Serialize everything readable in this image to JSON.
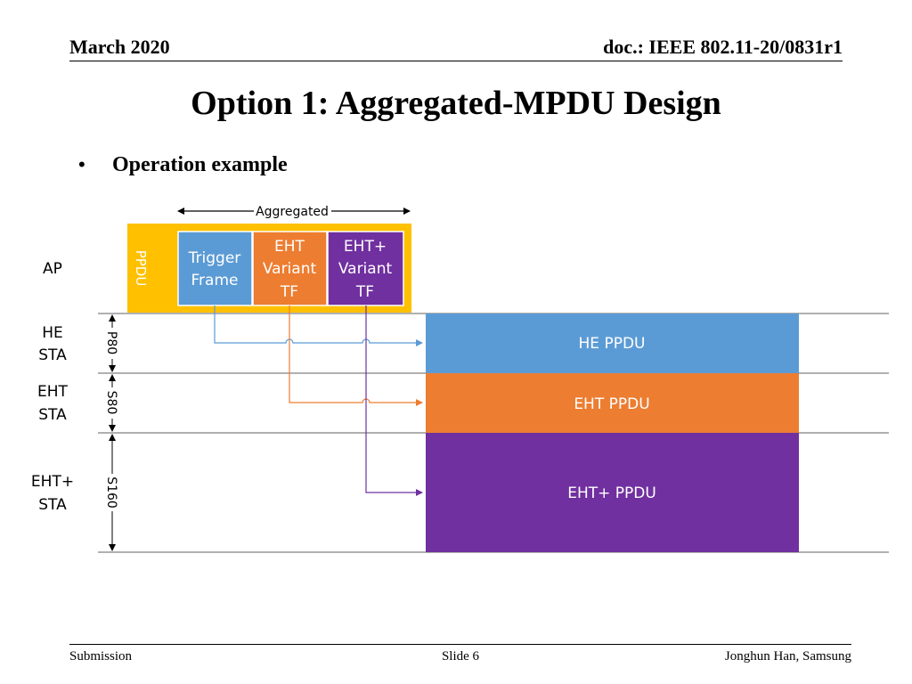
{
  "header": {
    "date": "March 2020",
    "doc": "doc.: IEEE 802.11-20/0831r1"
  },
  "title": "Option 1: Aggregated-MPDU Design",
  "bullet": "Operation example",
  "diagram": {
    "aggregated_label": "Aggregated",
    "ppdu_label": "PPDU",
    "row_labels": {
      "ap": "AP",
      "he_sta": [
        "HE",
        "STA"
      ],
      "eht_sta": [
        "EHT",
        "STA"
      ],
      "ehtplus_sta": [
        "EHT+",
        "STA"
      ]
    },
    "bandwidth_labels": {
      "p80": "P80",
      "s80": "S80",
      "s160": "S160"
    },
    "frames": {
      "trigger": [
        "Trigger",
        "Frame"
      ],
      "eht_variant": [
        "EHT",
        "Variant",
        "TF"
      ],
      "ehtplus_variant": [
        "EHT+",
        "Variant",
        "TF"
      ]
    },
    "responses": {
      "he": "HE PPDU",
      "eht": "EHT PPDU",
      "ehtplus": "EHT+ PPDU"
    },
    "colors": {
      "ppdu_bg": "#FFC000",
      "trigger": "#5B9BD5",
      "eht": "#ED7D31",
      "ehtplus": "#7030A0",
      "gridline": "#808080"
    }
  },
  "footer": {
    "left": "Submission",
    "center": "Slide 6",
    "right": "Jonghun Han, Samsung"
  }
}
